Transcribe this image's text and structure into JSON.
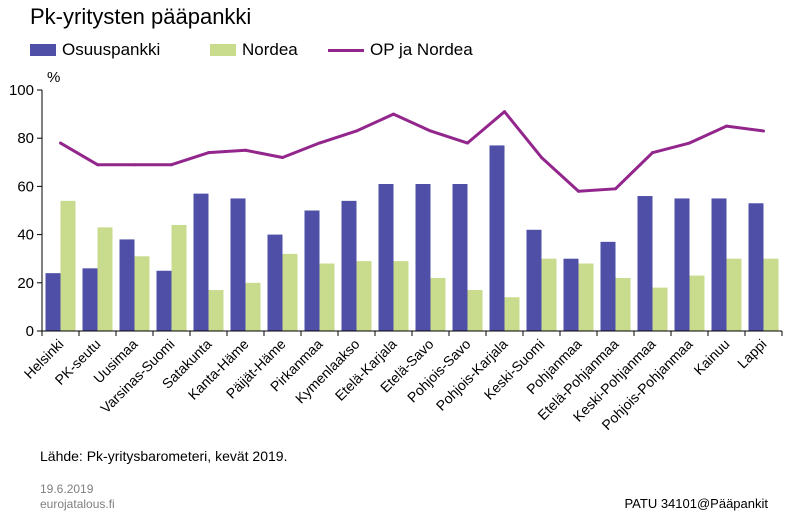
{
  "title": "Pk-yritysten pääpankki",
  "unit_label": "%",
  "source": "Lähde: Pk-yritysbarometeri, kevät 2019.",
  "date": "19.6.2019",
  "site": "eurojatalous.fi",
  "credit": "PATU 34101@Pääpankit",
  "colors": {
    "osuuspankki": "#4f4fa8",
    "nordea": "#c9dc8d",
    "op_ja_nordea": "#93268c"
  },
  "chart_data": {
    "type": "bar",
    "title": "Pk-yritysten pääpankki",
    "ylabel": "%",
    "ylim": [
      0,
      100
    ],
    "yticks": [
      0,
      20,
      40,
      60,
      80,
      100
    ],
    "grid": false,
    "legend": "top",
    "categories": [
      "Helsinki",
      "PK-seutu",
      "Uusimaa",
      "Varsinas-Suomi",
      "Satakunta",
      "Kanta-Häme",
      "Päijät-Häme",
      "Pirkanmaa",
      "Kymenlaakso",
      "Etelä-Karjala",
      "Etelä-Savo",
      "Pohjois-Savo",
      "Pohjois-Karjala",
      "Keski-Suomi",
      "Pohjanmaa",
      "Etelä-Pohjanmaa",
      "Keski-Pohjanmaa",
      "Pohjois-Pohjanmaa",
      "Kainuu",
      "Lappi"
    ],
    "series": [
      {
        "name": "Osuuspankki",
        "type": "bar",
        "values": [
          24,
          26,
          38,
          25,
          57,
          55,
          40,
          50,
          54,
          61,
          61,
          61,
          77,
          42,
          30,
          37,
          56,
          55,
          55,
          53
        ]
      },
      {
        "name": "Nordea",
        "type": "bar",
        "values": [
          54,
          43,
          31,
          44,
          17,
          20,
          32,
          28,
          29,
          29,
          22,
          17,
          14,
          30,
          28,
          22,
          18,
          23,
          30,
          30
        ]
      },
      {
        "name": "OP ja Nordea",
        "type": "line",
        "values": [
          78,
          69,
          69,
          69,
          74,
          75,
          72,
          78,
          83,
          90,
          83,
          78,
          91,
          72,
          58,
          59,
          74,
          78,
          85,
          83
        ]
      }
    ]
  }
}
